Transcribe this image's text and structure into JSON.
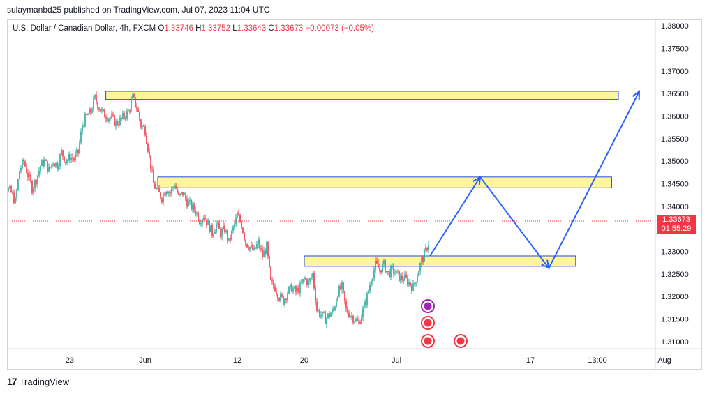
{
  "header": {
    "publisher": "sulaymanbd25 published on TradingView.com, Jul 07, 2023 11:04 UTC"
  },
  "legend": {
    "symbol": "U.S. Dollar / Canadian Dollar, 4h, FXCM",
    "open_label": "O",
    "open": "1.33746",
    "high_label": "H",
    "high": "1.33752",
    "low_label": "L",
    "low": "1.33643",
    "close_label": "C",
    "close": "1.33673",
    "change": "−0.00073 (−0.05%)"
  },
  "price_tag": {
    "price": "1.33673",
    "countdown": "01:55:29"
  },
  "brand": {
    "name": "TradingView"
  },
  "colors": {
    "up": "#26a69a",
    "down": "#f23645",
    "zone_fill": "#fff59d",
    "zone_border": "#1e4dd8",
    "arrow": "#2962ff"
  },
  "chart_data": {
    "type": "candlestick",
    "symbol": "USDCAD",
    "timeframe": "4h",
    "y_ticks": [
      "1.38000",
      "1.37500",
      "1.37000",
      "1.36500",
      "1.36000",
      "1.35500",
      "1.35000",
      "1.34500",
      "1.34000",
      "1.33500",
      "1.33000",
      "1.32500",
      "1.32000",
      "1.31500",
      "1.31000"
    ],
    "ylim": [
      1.3075,
      1.3805
    ],
    "x_ticks": [
      {
        "label": "23",
        "day": 0
      },
      {
        "label": "Jun",
        "day": 9
      },
      {
        "label": "12",
        "day": 20
      },
      {
        "label": "20",
        "day": 28
      },
      {
        "label": "Jul",
        "day": 39
      },
      {
        "label": "17",
        "day": 55
      },
      {
        "label": "13:00",
        "day": 63
      },
      {
        "label": "Aug",
        "day": 71
      }
    ],
    "close_path": [
      [
        -9,
        1.354
      ],
      [
        -8.5,
        1.347
      ],
      [
        -8,
        1.349
      ],
      [
        -7.5,
        1.344
      ],
      [
        -7,
        1.343
      ],
      [
        -6.5,
        1.341
      ],
      [
        -6,
        1.348
      ],
      [
        -5.5,
        1.35
      ],
      [
        -5,
        1.347
      ],
      [
        -4.5,
        1.344
      ],
      [
        -4,
        1.346
      ],
      [
        -3.5,
        1.349
      ],
      [
        -3,
        1.35
      ],
      [
        -2.5,
        1.348
      ],
      [
        -2,
        1.35
      ],
      [
        -1.5,
        1.349
      ],
      [
        -1,
        1.352
      ],
      [
        -0.5,
        1.35
      ],
      [
        0,
        1.351
      ],
      [
        0.5,
        1.3505
      ],
      [
        1,
        1.352
      ],
      [
        1.5,
        1.358
      ],
      [
        2,
        1.36
      ],
      [
        2.5,
        1.361
      ],
      [
        3,
        1.364
      ],
      [
        3.5,
        1.362
      ],
      [
        4,
        1.3605
      ],
      [
        4.5,
        1.36
      ],
      [
        5,
        1.3595
      ],
      [
        5.5,
        1.3585
      ],
      [
        6,
        1.359
      ],
      [
        6.5,
        1.36
      ],
      [
        7,
        1.361
      ],
      [
        7.5,
        1.364
      ],
      [
        8,
        1.362
      ],
      [
        8.5,
        1.358
      ],
      [
        9,
        1.357
      ],
      [
        9.5,
        1.351
      ],
      [
        10,
        1.345
      ],
      [
        10.5,
        1.343
      ],
      [
        11,
        1.342
      ],
      [
        11.5,
        1.344
      ],
      [
        12,
        1.343
      ],
      [
        12.5,
        1.345
      ],
      [
        13,
        1.342
      ],
      [
        13.5,
        1.343
      ],
      [
        14,
        1.341
      ],
      [
        14.5,
        1.34
      ],
      [
        15,
        1.339
      ],
      [
        15.5,
        1.337
      ],
      [
        16,
        1.338
      ],
      [
        16.5,
        1.336
      ],
      [
        17,
        1.334
      ],
      [
        17.5,
        1.336
      ],
      [
        18,
        1.334
      ],
      [
        18.5,
        1.335
      ],
      [
        19,
        1.332
      ],
      [
        19.5,
        1.335
      ],
      [
        20,
        1.338
      ],
      [
        20.5,
        1.336
      ],
      [
        21,
        1.332
      ],
      [
        21.5,
        1.331
      ],
      [
        22,
        1.33
      ],
      [
        22.5,
        1.332
      ],
      [
        23,
        1.329
      ],
      [
        23.5,
        1.331
      ],
      [
        24,
        1.323
      ],
      [
        24.5,
        1.322
      ],
      [
        25,
        1.32
      ],
      [
        25.5,
        1.319
      ],
      [
        26,
        1.321
      ],
      [
        26.5,
        1.322
      ],
      [
        27,
        1.321
      ],
      [
        27.5,
        1.322
      ],
      [
        28,
        1.324
      ],
      [
        28.5,
        1.323
      ],
      [
        29,
        1.325
      ],
      [
        29.5,
        1.317
      ],
      [
        30,
        1.316
      ],
      [
        30.5,
        1.315
      ],
      [
        31,
        1.316
      ],
      [
        31.5,
        1.317
      ],
      [
        32,
        1.321
      ],
      [
        32.5,
        1.322
      ],
      [
        33,
        1.317
      ],
      [
        33.5,
        1.316
      ],
      [
        34,
        1.315
      ],
      [
        34.5,
        1.314
      ],
      [
        35,
        1.317
      ],
      [
        35.5,
        1.32
      ],
      [
        36,
        1.324
      ],
      [
        36.5,
        1.327
      ],
      [
        37,
        1.326
      ],
      [
        37.5,
        1.327
      ],
      [
        38,
        1.325
      ],
      [
        38.5,
        1.326
      ],
      [
        39,
        1.325
      ],
      [
        39.5,
        1.324
      ],
      [
        40,
        1.324
      ],
      [
        40.5,
        1.323
      ],
      [
        41,
        1.322
      ],
      [
        41.5,
        1.325
      ],
      [
        42,
        1.328
      ],
      [
        42.5,
        1.33
      ],
      [
        43,
        1.333
      ],
      [
        43.5,
        1.337
      ],
      [
        44,
        1.3375
      ],
      [
        44.3,
        1.3367
      ]
    ],
    "zones": [
      {
        "from_day": 4.3,
        "to_day": 65.5,
        "top": 1.3655,
        "bottom": 1.3637
      },
      {
        "from_day": 10.5,
        "to_day": 64.7,
        "top": 1.3465,
        "bottom": 1.3441
      },
      {
        "from_day": 28.0,
        "to_day": 60.4,
        "top": 1.329,
        "bottom": 1.3267
      }
    ],
    "projection": [
      [
        43.0,
        1.329
      ],
      [
        49.0,
        1.3465
      ],
      [
        57.2,
        1.3263
      ],
      [
        68.0,
        1.3655
      ]
    ],
    "current_price": 1.33673
  }
}
